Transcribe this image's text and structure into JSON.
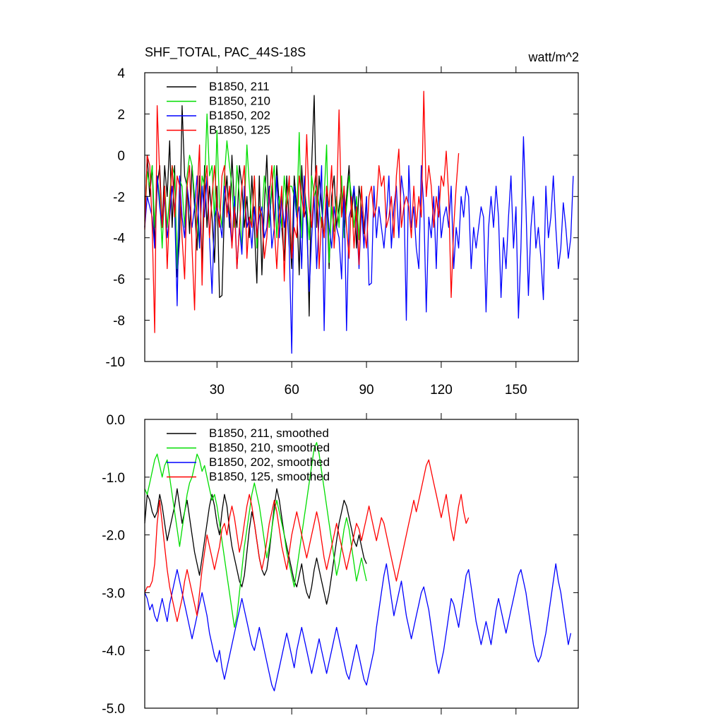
{
  "chart_data": [
    {
      "type": "line",
      "title": "SHF_TOTAL, PAC_44S-18S",
      "units": "watt/m^2",
      "xlabel": "",
      "ylabel": "",
      "xlim": [
        1,
        175
      ],
      "ylim": [
        -10,
        4
      ],
      "xticks": [
        30,
        60,
        90,
        120,
        150
      ],
      "yticks": [
        4,
        2,
        0,
        -2,
        -4,
        -6,
        -8,
        -10
      ],
      "ytick_labels": [
        "4",
        "2",
        "0",
        "-2",
        "-4",
        "-6",
        "-8",
        "-10"
      ],
      "legend": "top-left",
      "series": [
        {
          "name": "B1850, 211",
          "color": "#000000",
          "values": [
            -3.5,
            0,
            -2,
            -0.5,
            -4.5,
            -1.5,
            -0.5,
            -3.5,
            -0.5,
            -2,
            0.7,
            -3.5,
            -0.5,
            -5.9,
            -4,
            2.4,
            -1,
            -1.5,
            -3.8,
            -0.5,
            -2.5,
            -4.6,
            -1,
            -5.4,
            -0.5,
            -3.5,
            -1.5,
            -3,
            -5.2,
            -1.5,
            -6.9,
            -6.8,
            -2.5,
            -1,
            -3.5,
            0,
            -2.5,
            -3.5,
            -0.5,
            -1.5,
            -3.5,
            -2,
            -4,
            -1,
            -3.5,
            -6.2,
            -1,
            -5.8,
            -2.5,
            0,
            -3.5,
            -1.5,
            -3.5,
            -0.5,
            -2.5,
            -3.5,
            -5.1,
            -1,
            -3.3,
            -5.5,
            -1,
            -2.5,
            -5.8,
            -0.5,
            -3,
            -2.5,
            -7.8,
            -0.5,
            2.9,
            -3.5,
            -1,
            -2.5,
            -4,
            -1.5,
            -5.5,
            -2,
            -1,
            -3.5,
            -2.5,
            -1.5,
            -3.5,
            -2,
            -0.5,
            -3,
            -1.5,
            -4.5,
            -1.5,
            -2.5,
            -3.8,
            -2
          ]
        },
        {
          "name": "B1850, 210",
          "color": "#00dd00",
          "values": [
            -3.2,
            -0.8,
            -1.5,
            -0.5,
            -3.5,
            -1,
            -2,
            -4.5,
            -1.5,
            -3.5,
            -2,
            -0.5,
            -1,
            -5.5,
            -1.2,
            -1.5,
            -3.5,
            -1,
            0,
            -0.5,
            -2,
            -3,
            -4.5,
            -1,
            -1.5,
            2,
            -1,
            -0.5,
            -3.2,
            1.2,
            -2.5,
            -3.5,
            -1,
            0.7,
            -0.5,
            -1.5,
            -3.5,
            -0.5,
            -2,
            -4.5,
            -2.5,
            0.5,
            -1.5,
            -3.5,
            -1,
            -4.5,
            -2.5,
            -3,
            -1,
            -2,
            -3.5,
            -1.5,
            -0.5,
            -4,
            -2,
            -3.5,
            -1,
            -2.5,
            -1.5,
            -1.5,
            -2,
            -3,
            1.1,
            -4,
            -1.5,
            -2.5,
            -4.1,
            -1,
            -2,
            -1.5,
            -2.5,
            -3.5,
            -2,
            0.5,
            -5.2,
            -2.5,
            -3.7,
            -2,
            -3.5,
            -1,
            -4,
            -2.5,
            -1,
            -2,
            -3.5,
            -2,
            -4.1,
            -1.5
          ]
        },
        {
          "name": "B1850, 202",
          "color": "#0000ff",
          "values": [
            -3.5,
            -2,
            -2.5,
            -3,
            -4.5,
            -1,
            -2.5,
            -3.5,
            -2,
            -4,
            -3,
            -1.5,
            -2.5,
            -7.3,
            -1,
            -3,
            -4,
            -1.5,
            -2.5,
            -3.5,
            -2.5,
            -1,
            -4.5,
            -1.5,
            -3,
            -1,
            -4,
            -6.7,
            -3,
            -2.5,
            -3.1,
            -4,
            -1.5,
            -2.5,
            -3,
            -4.4,
            -2,
            -5.5,
            -3.5,
            -4.8,
            -1.5,
            -3.5,
            -3,
            -4.5,
            -2.5,
            -4,
            -3,
            -2.5,
            -4,
            -3.5,
            -1.5,
            -4.5,
            -3.5,
            -1,
            -4,
            -2,
            -3.5,
            -2.5,
            -4.5,
            -9.6,
            -1.5,
            -3,
            -2.5,
            -5.5,
            -1,
            -3.5,
            -6.6,
            -4,
            -2,
            -5.5,
            -3,
            -0.5,
            -8.5,
            -2,
            -3.5,
            -4.5,
            -2.5,
            -3.5,
            -4,
            -6,
            -1.5,
            -8.5,
            -3,
            -2.5,
            -1.5,
            -3,
            -5.5,
            -2.5,
            -4.5,
            -2,
            -6.3,
            -6.2,
            -1.5,
            -4,
            -2.5,
            -3.5,
            -4.5,
            -3,
            -1,
            -4.5,
            -2.5,
            -1.5,
            -4,
            -1,
            -2,
            -8,
            -0.5,
            -3.5,
            -2.5,
            -4.5,
            -5.5,
            -0.5,
            -2.5,
            -7.6,
            -3,
            -4,
            -2,
            -5.5,
            -1.5,
            -4,
            -3,
            -2.5,
            -3.5,
            -1.5,
            -5.5,
            -3.5,
            -4.5,
            -2,
            -3,
            -1.5,
            -2,
            -5.5,
            -3.5,
            -4.5,
            -3.5,
            -2.5,
            -3,
            -7.6,
            -3.5,
            -2,
            -3.5,
            -1.5,
            -3,
            -6.9,
            -4,
            -5.5,
            -3,
            -1,
            -4.5,
            -2.5,
            -7.9,
            -4.5,
            0.9,
            -2.5,
            -6.8,
            -3.5,
            -2,
            -4.5,
            -3.5,
            -5,
            -7,
            -1.5,
            -4,
            -3,
            -1,
            -3.5,
            -5.5,
            -4.5,
            -2.3,
            -3.5,
            -5,
            -4,
            -1
          ]
        },
        {
          "name": "B1850, 125",
          "color": "#ff0000",
          "values": [
            -3.6,
            0,
            -0.5,
            -3.5,
            -8.6,
            2.4,
            -1,
            -3.5,
            -1.5,
            -5.5,
            -2.5,
            -0.5,
            -3,
            -1,
            -1.5,
            -4,
            -6,
            -1.5,
            -0.5,
            -4.5,
            -7.5,
            -2,
            0.5,
            -6.3,
            -1.5,
            -0.5,
            -4,
            -2,
            -0.5,
            -2.5,
            -3.5,
            -1,
            -0.5,
            -3,
            -1.5,
            -4.5,
            -2.5,
            -5.5,
            -3.5,
            -1.5,
            -0.5,
            -5,
            -3,
            -3.5,
            -1,
            -4,
            -2.5,
            -3,
            -5,
            -4,
            -2,
            -0.5,
            -3.5,
            -5.5,
            -3,
            -1.5,
            -6.1,
            -2.5,
            -1,
            -5,
            -3.5,
            -4,
            -1,
            -2,
            -3,
            1,
            -2.5,
            -3.5,
            -1.5,
            -0.5,
            -5.5,
            -3,
            -4,
            -1.5,
            -2.5,
            -0.5,
            -4.5,
            -2.5,
            2.2,
            -3,
            -1.5,
            -3.5,
            -5,
            -2,
            -4.5,
            -2.5,
            -5.3,
            -1.5,
            -3.5,
            -4.5,
            -2,
            -1.5,
            -3,
            -2.5,
            -0.5,
            -1.5,
            -1,
            -3.5,
            -3,
            -2,
            -4,
            -1,
            0.3,
            -3.5,
            -2.5,
            -2,
            -2.5,
            -4,
            -1.5,
            -3.5,
            -2,
            -3,
            3.1,
            -2,
            -0.5,
            -1.5,
            -3.5,
            -2,
            -3,
            -1,
            -1.5,
            0.2,
            -2,
            -6.9,
            -3.5,
            -1.5,
            0.1
          ]
        }
      ]
    },
    {
      "type": "line",
      "title": "",
      "xlabel": "",
      "ylabel": "",
      "xlim": [
        1,
        175
      ],
      "ylim": [
        -5,
        0
      ],
      "xticks": [
        30,
        60,
        90,
        120,
        150
      ],
      "yticks": [
        0,
        -1,
        -2,
        -3,
        -4,
        -5
      ],
      "ytick_labels": [
        "0.0",
        "-1.0",
        "-2.0",
        "-3.0",
        "-4.0",
        "-5.0"
      ],
      "legend": "top-left",
      "series": [
        {
          "name": "B1850, 211, smoothed",
          "color": "#000000",
          "values": [
            -1.8,
            -1.3,
            -1.4,
            -1.6,
            -1.7,
            -1.6,
            -1.3,
            -1.5,
            -1.8,
            -2.1,
            -1.9,
            -1.7,
            -1.5,
            -1.2,
            -1.5,
            -1.8,
            -1.6,
            -1.4,
            -1.7,
            -2.0,
            -2.3,
            -2.5,
            -2.7,
            -2.4,
            -2.1,
            -1.8,
            -1.5,
            -1.3,
            -1.5,
            -1.8,
            -2.0,
            -1.6,
            -1.3,
            -1.5,
            -1.9,
            -2.2,
            -2.4,
            -2.6,
            -2.8,
            -2.9,
            -2.7,
            -2.3,
            -1.9,
            -1.6,
            -1.8,
            -2.1,
            -2.4,
            -2.6,
            -2.7,
            -2.6,
            -2.3,
            -1.9,
            -1.5,
            -1.2,
            -1.4,
            -1.7,
            -2.0,
            -2.2,
            -2.4,
            -2.6,
            -2.8,
            -2.9,
            -2.7,
            -2.5,
            -2.8,
            -3.0,
            -3.1,
            -2.9,
            -2.6,
            -2.4,
            -2.6,
            -2.8,
            -3.0,
            -3.2,
            -3.0,
            -2.7,
            -2.4,
            -2.1,
            -1.8,
            -1.6,
            -1.4,
            -1.5,
            -1.7,
            -1.9,
            -2.1,
            -2.2,
            -2.0,
            -2.2,
            -2.4,
            -2.5
          ]
        },
        {
          "name": "B1850, 210, smoothed",
          "color": "#00dd00",
          "values": [
            -1.2,
            -1.3,
            -1.1,
            -0.9,
            -0.7,
            -0.6,
            -0.8,
            -1.0,
            -0.8,
            -0.7,
            -1.0,
            -1.3,
            -1.6,
            -1.9,
            -2.2,
            -1.9,
            -1.6,
            -1.3,
            -1.1,
            -1.0,
            -0.8,
            -0.6,
            -0.7,
            -0.9,
            -0.8,
            -1.0,
            -1.2,
            -1.4,
            -1.3,
            -1.5,
            -1.8,
            -2.1,
            -2.4,
            -2.7,
            -3.0,
            -3.3,
            -3.6,
            -3.4,
            -3.0,
            -2.6,
            -2.2,
            -1.9,
            -1.6,
            -1.3,
            -1.1,
            -1.3,
            -1.5,
            -1.8,
            -2.1,
            -2.4,
            -2.2,
            -1.9,
            -1.6,
            -1.4,
            -1.6,
            -1.8,
            -2.0,
            -2.3,
            -2.5,
            -2.7,
            -2.9,
            -2.6,
            -2.3,
            -2.0,
            -1.7,
            -1.4,
            -1.1,
            -0.8,
            -0.5,
            -0.4,
            -0.6,
            -0.9,
            -1.2,
            -1.5,
            -1.8,
            -2.1,
            -2.4,
            -2.7,
            -2.5,
            -2.2,
            -1.9,
            -1.7,
            -1.9,
            -2.2,
            -2.5,
            -2.8,
            -2.6,
            -2.4,
            -2.6,
            -2.8
          ]
        },
        {
          "name": "B1850, 202, smoothed",
          "color": "#0000ff",
          "values": [
            -3.0,
            -3.1,
            -3.3,
            -3.2,
            -3.4,
            -3.5,
            -3.3,
            -3.1,
            -3.3,
            -3.5,
            -3.2,
            -3.0,
            -2.8,
            -2.6,
            -2.8,
            -3.0,
            -3.2,
            -3.4,
            -3.6,
            -3.8,
            -3.6,
            -3.4,
            -3.2,
            -3.0,
            -3.2,
            -3.4,
            -3.7,
            -3.9,
            -4.1,
            -4.2,
            -4.0,
            -4.3,
            -4.5,
            -4.3,
            -4.1,
            -3.9,
            -3.7,
            -3.5,
            -3.3,
            -3.1,
            -3.3,
            -3.5,
            -3.7,
            -3.9,
            -4.0,
            -3.8,
            -3.6,
            -3.8,
            -4.0,
            -4.2,
            -4.4,
            -4.6,
            -4.7,
            -4.5,
            -4.3,
            -4.1,
            -3.9,
            -3.7,
            -3.9,
            -4.1,
            -4.3,
            -4.0,
            -3.8,
            -3.6,
            -3.8,
            -4.0,
            -4.2,
            -4.4,
            -4.2,
            -4.0,
            -3.8,
            -4.0,
            -4.2,
            -4.4,
            -4.2,
            -4.0,
            -3.8,
            -3.6,
            -3.8,
            -4.0,
            -4.2,
            -4.4,
            -4.5,
            -4.3,
            -4.1,
            -3.9,
            -4.1,
            -4.3,
            -4.5,
            -4.6,
            -4.4,
            -4.2,
            -4.0,
            -3.6,
            -3.3,
            -3.0,
            -2.7,
            -2.5,
            -2.8,
            -3.1,
            -3.4,
            -3.2,
            -3.0,
            -2.8,
            -3.1,
            -3.4,
            -3.6,
            -3.8,
            -3.6,
            -3.4,
            -3.2,
            -3.0,
            -2.9,
            -3.1,
            -3.3,
            -3.6,
            -3.9,
            -4.2,
            -4.4,
            -4.2,
            -4.0,
            -3.7,
            -3.4,
            -3.1,
            -3.2,
            -3.4,
            -3.6,
            -3.3,
            -3.0,
            -2.7,
            -2.6,
            -2.9,
            -3.2,
            -3.5,
            -3.7,
            -3.9,
            -3.7,
            -3.5,
            -3.7,
            -3.9,
            -3.6,
            -3.3,
            -3.1,
            -3.3,
            -3.5,
            -3.7,
            -3.5,
            -3.3,
            -3.1,
            -2.9,
            -2.7,
            -2.6,
            -2.8,
            -3.0,
            -3.3,
            -3.6,
            -3.9,
            -4.1,
            -4.2,
            -4.1,
            -3.9,
            -3.7,
            -3.4,
            -3.1,
            -2.8,
            -2.5,
            -2.8,
            -3.0,
            -3.3,
            -3.6,
            -3.9,
            -3.7
          ]
        },
        {
          "name": "B1850, 125, smoothed",
          "color": "#ff0000",
          "values": [
            -3.0,
            -2.9,
            -2.9,
            -2.8,
            -2.5,
            -1.8,
            -1.4,
            -1.8,
            -2.2,
            -2.6,
            -2.9,
            -3.1,
            -3.3,
            -3.5,
            -3.3,
            -3.1,
            -2.8,
            -2.6,
            -2.8,
            -3.0,
            -3.2,
            -3.4,
            -3.0,
            -2.6,
            -2.3,
            -2.0,
            -2.2,
            -2.4,
            -2.6,
            -2.4,
            -2.2,
            -1.9,
            -1.8,
            -2.0,
            -1.7,
            -1.5,
            -1.7,
            -2.0,
            -2.3,
            -2.1,
            -1.8,
            -1.5,
            -1.3,
            -1.5,
            -1.8,
            -2.1,
            -2.4,
            -2.6,
            -2.4,
            -2.1,
            -1.8,
            -1.6,
            -1.4,
            -1.6,
            -1.9,
            -2.2,
            -2.4,
            -2.6,
            -2.3,
            -2.0,
            -1.8,
            -1.6,
            -1.8,
            -2.0,
            -2.2,
            -2.4,
            -2.2,
            -2.0,
            -1.8,
            -1.6,
            -1.8,
            -2.1,
            -2.4,
            -2.6,
            -2.4,
            -2.2,
            -2.0,
            -1.8,
            -2.0,
            -2.2,
            -2.4,
            -2.6,
            -2.4,
            -2.2,
            -2.0,
            -1.8,
            -1.9,
            -2.1,
            -1.9,
            -1.7,
            -1.5,
            -1.7,
            -1.9,
            -2.1,
            -1.9,
            -1.7,
            -1.8,
            -2.0,
            -2.2,
            -2.4,
            -2.6,
            -2.8,
            -2.6,
            -2.4,
            -2.2,
            -2.0,
            -1.8,
            -1.6,
            -1.4,
            -1.6,
            -1.4,
            -1.2,
            -1.0,
            -0.8,
            -0.7,
            -0.9,
            -1.1,
            -1.3,
            -1.5,
            -1.7,
            -1.5,
            -1.3,
            -1.6,
            -1.9,
            -2.1,
            -1.8,
            -1.5,
            -1.3,
            -1.6,
            -1.8,
            -1.7
          ]
        }
      ]
    }
  ]
}
